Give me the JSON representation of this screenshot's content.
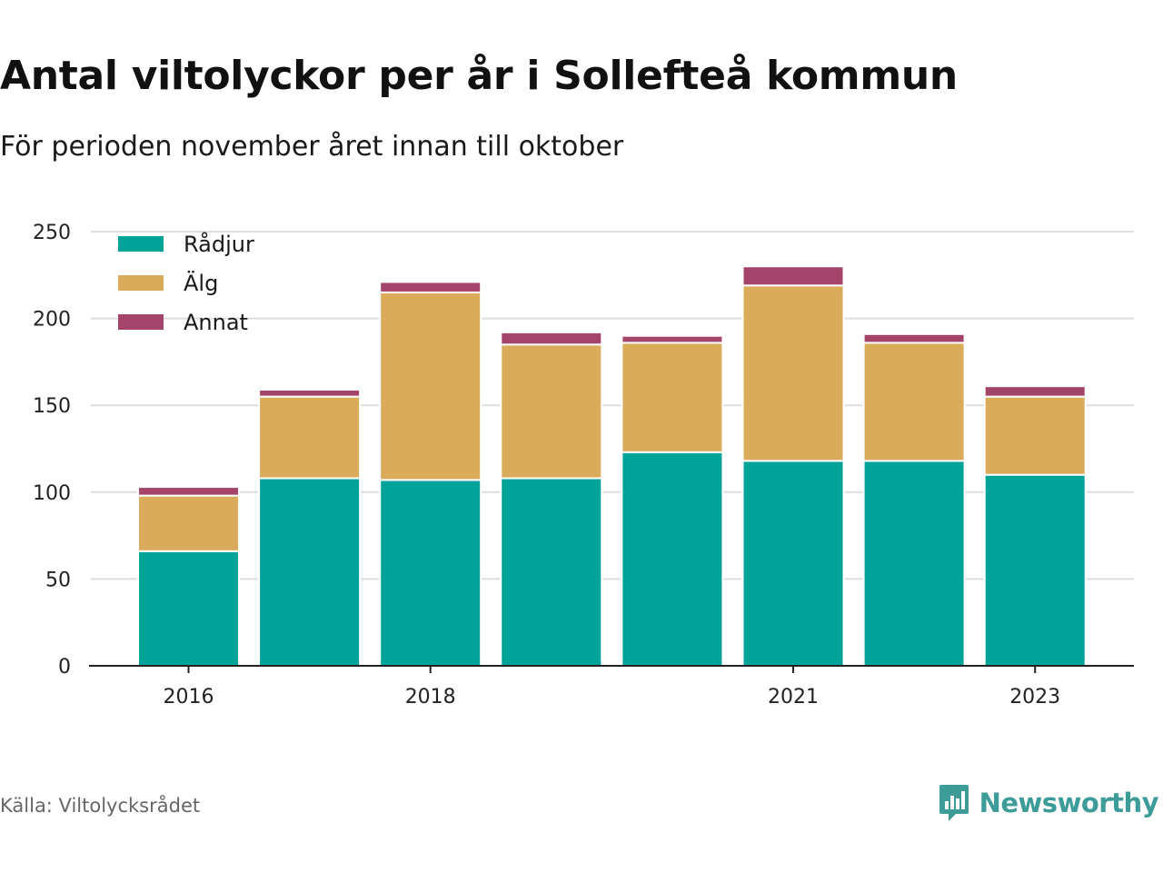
{
  "title": "Antal viltolyckor per år i Sollefteå kommun",
  "subtitle": "För perioden november året innan till oktober",
  "source": "Källa: Viltolycksrådet",
  "brand": {
    "name": "Newsworthy",
    "icon": "newsworthy-logo-icon",
    "color": "#3d9b98"
  },
  "chart_data": {
    "type": "bar",
    "stacked": true,
    "x": [
      2016,
      2017,
      2018,
      2019,
      2020,
      2021,
      2022,
      2023
    ],
    "x_tick_labels": [
      "2016",
      "2018",
      "2021",
      "2023"
    ],
    "series": [
      {
        "name": "Rådjur",
        "color": "#00a398",
        "values": [
          66,
          108,
          107,
          108,
          123,
          118,
          118,
          110
        ]
      },
      {
        "name": "Älg",
        "color": "#d9ab5b",
        "values": [
          32,
          47,
          108,
          77,
          63,
          101,
          68,
          45
        ]
      },
      {
        "name": "Annat",
        "color": "#a4446a",
        "values": [
          5,
          4,
          6,
          7,
          4,
          11,
          5,
          6
        ]
      }
    ],
    "y_ticks": [
      0,
      50,
      100,
      150,
      200,
      250
    ],
    "ylim": [
      0,
      250
    ],
    "grid": true,
    "legend": "top-left"
  }
}
